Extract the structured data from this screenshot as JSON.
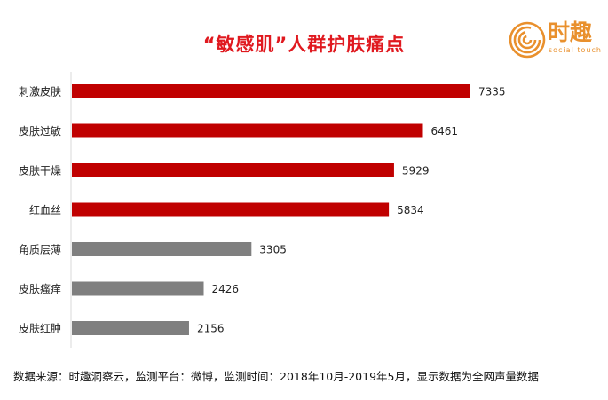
{
  "colors": {
    "title": "#e0191f",
    "accent_bar": "#c00000",
    "muted_bar": "#7f7f7f",
    "axis": "#d9d9d9",
    "logo": "#e9902d"
  },
  "logo": {
    "name": "时趣",
    "tagline": "social touch",
    "icon": "spiral-logo-icon"
  },
  "chart_data": {
    "type": "bar",
    "orientation": "horizontal",
    "title": "“敏感肌”人群护肤痛点",
    "categories": [
      "刺激皮肤",
      "皮肤过敏",
      "皮肤干燥",
      "红血丝",
      "角质层薄",
      "皮肤瘙痒",
      "皮肤红肿"
    ],
    "values": [
      7335,
      6461,
      5929,
      5834,
      3305,
      2426,
      2156
    ],
    "highlighted_count": 4,
    "xlabel": "",
    "ylabel": "",
    "xlim": [
      0,
      8000
    ],
    "grid": false,
    "data_labels": true
  },
  "footer": {
    "source": "数据来源：时趣洞察云，监测平台：微博，监测时间：2018年10月-2019年5月，显示数据为全网声量数据"
  }
}
